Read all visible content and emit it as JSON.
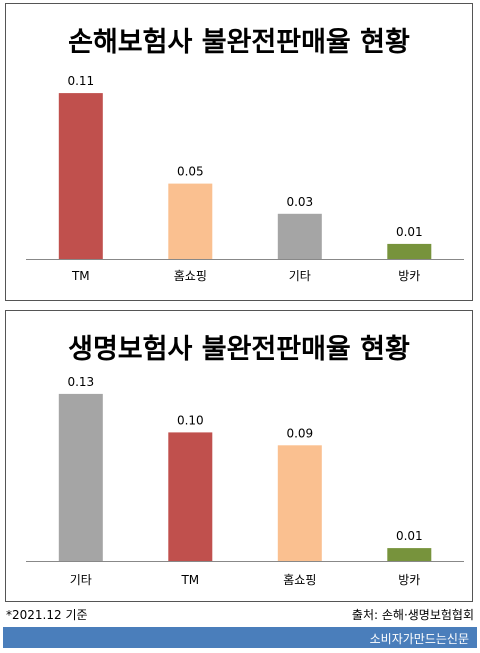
{
  "chart_data": [
    {
      "type": "bar",
      "title": "손해보험사 불완전판매율 현황",
      "categories": [
        "TM",
        "홈쇼핑",
        "기타",
        "방카"
      ],
      "values": [
        0.11,
        0.05,
        0.03,
        0.01
      ],
      "value_labels": [
        "0.11",
        "0.05",
        "0.03",
        "0.01"
      ],
      "colors": [
        "#c0504d",
        "#fac090",
        "#a5a5a5",
        "#77933c"
      ],
      "xlabel": "",
      "ylabel": "",
      "ylim": [
        0,
        0.12
      ],
      "grid": false,
      "legend": "none"
    },
    {
      "type": "bar",
      "title": "생명보험사 불완전판매율 현황",
      "categories": [
        "기타",
        "TM",
        "홈쇼핑",
        "방카"
      ],
      "values": [
        0.13,
        0.1,
        0.09,
        0.01
      ],
      "value_labels": [
        "0.13",
        "0.10",
        "0.09",
        "0.01"
      ],
      "colors": [
        "#a5a5a5",
        "#c0504d",
        "#fac090",
        "#77933c"
      ],
      "xlabel": "",
      "ylabel": "",
      "ylim": [
        0,
        0.14
      ],
      "grid": false,
      "legend": "none"
    }
  ],
  "footnote": "*2021.12 기준",
  "source": "출처: 손해·생명보험협회",
  "brand": "소비자가만드는신문",
  "colors": {
    "footer_bar": "#4a7ebb"
  }
}
